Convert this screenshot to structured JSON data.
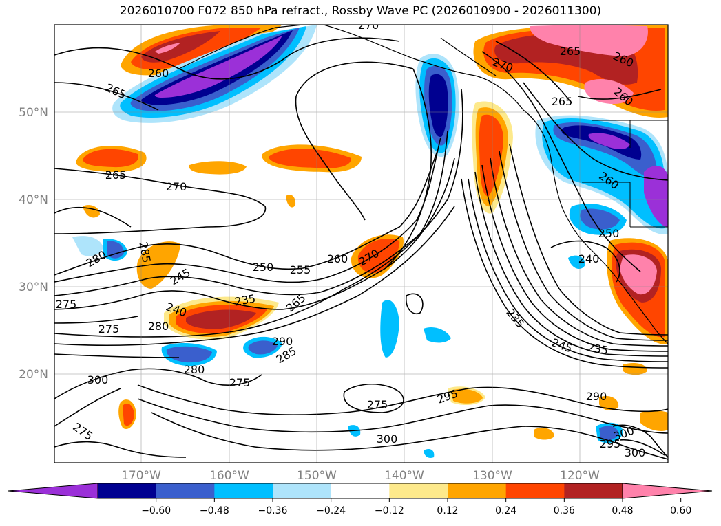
{
  "title": "2026010700 F072 850 hPa refract., Rossby Wave PC (2026010900 - 2026011300)",
  "map": {
    "lat_labels": [
      "50°N",
      "40°N",
      "30°N",
      "20°N"
    ],
    "lon_labels": [
      "170°W",
      "160°W",
      "150°W",
      "140°W",
      "130°W",
      "120°W"
    ],
    "contour_labels": [
      "270",
      "260",
      "265",
      "265",
      "270",
      "265",
      "260",
      "260",
      "265",
      "260",
      "270",
      "285",
      "280",
      "250",
      "255",
      "260",
      "270",
      "245",
      "235",
      "240",
      "265",
      "275",
      "280",
      "275",
      "290",
      "285",
      "280",
      "300",
      "275",
      "275",
      "295",
      "300",
      "235",
      "245",
      "235",
      "250",
      "240",
      "290",
      "295",
      "300",
      "300",
      "275"
    ]
  },
  "colorbar": {
    "colors": [
      "#9b30d8",
      "#000090",
      "#3a5fcd",
      "#00bfff",
      "#aee4fb",
      "#ffffff",
      "#fde98b",
      "#ffa500",
      "#ff4500",
      "#b22222",
      "#ff82ab"
    ],
    "tick_labels": [
      "−0.60",
      "−0.48",
      "−0.36",
      "−0.24",
      "−0.12",
      "0.12",
      "0.24",
      "0.36",
      "0.48",
      "0.60"
    ]
  }
}
